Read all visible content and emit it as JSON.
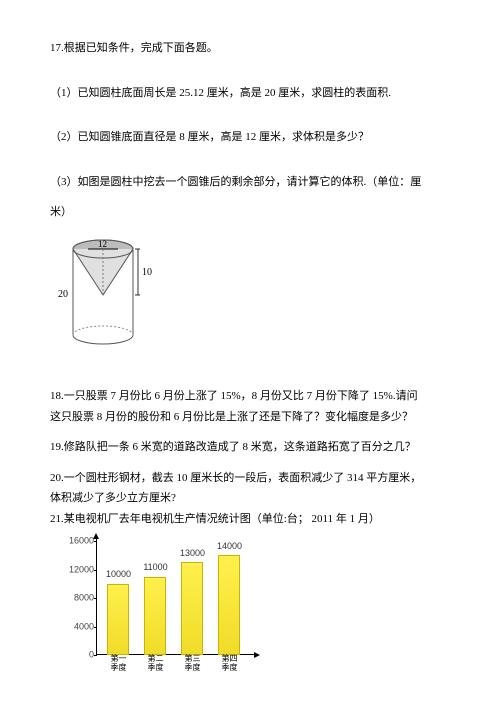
{
  "q17": {
    "stem": "17.根据已知条件，完成下面各题。",
    "part1": "（1）已知圆柱底面周长是 25.12 厘米，高是 20 厘米，求圆柱的表面积.",
    "part2": "（2）已知圆锥底面直径是 8 厘米，高是 12 厘米，求体积是多少？",
    "part3a": "（3）如图是圆柱中挖去一个圆锥后的剩余部分，请计算它的体积.（单位：厘",
    "part3b": "米）",
    "fig": {
      "topDiameter": "12",
      "coneHeight": "10",
      "cylHeight": "20"
    }
  },
  "q18": {
    "line1": "18.一只股票 7 月份比 6 月份上涨了 15%，8 月份又比 7 月份下降了 15%.请问",
    "line2": "这只股票 8 月份的股份和 6 月份比是上涨了还是下降了？变化幅度是多少？"
  },
  "q19": "19.修路队把一条 6 米宽的道路改造成了 8 米宽，这条道路拓宽了百分之几？",
  "q20": {
    "line1": "20.一个圆柱形钢材，截去 10 厘米长的一段后，表面积减少了 314 平方厘米，",
    "line2": "体积减少了多少立方厘米?"
  },
  "q21": "21.某电视机厂去年电视机生产情况统计图（单位:台； 2011 年 1 月）",
  "chart": {
    "type": "bar",
    "y_ticks": [
      0,
      4000,
      8000,
      12000,
      16000
    ],
    "y_max": 16000,
    "categories": [
      "第一\n季度",
      "第二\n季度",
      "第三\n季度",
      "第四\n季度"
    ],
    "values": [
      10000,
      11000,
      13000,
      14000
    ],
    "bar_color": "#f0dc28",
    "bar_border": "#c9b400",
    "axis_color": "#000000",
    "label_fontsize": 9
  }
}
